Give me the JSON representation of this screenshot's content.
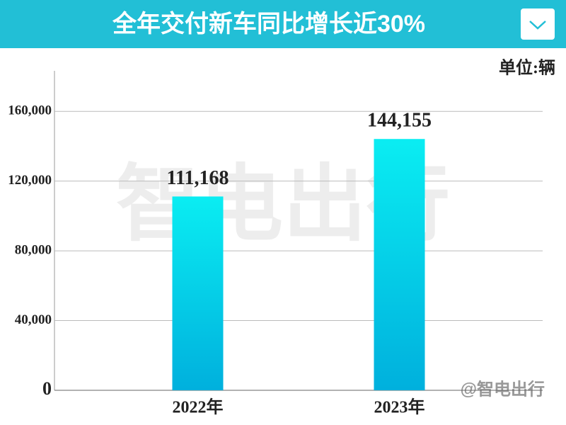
{
  "chart_data": {
    "type": "bar",
    "title": "全年交付新车同比增长近30%",
    "unit_label": "单位:辆",
    "watermark": "智电出行",
    "credit": "@智电出行",
    "categories": [
      "2022年",
      "2023年"
    ],
    "values": [
      111168,
      144155
    ],
    "value_labels": [
      "111,168",
      "144,155"
    ],
    "gradient": [
      "#0aedf2",
      "#00b0dd"
    ],
    "header_color": "#22bfd6",
    "ylim": [
      0,
      180000
    ],
    "yticks": [
      0,
      {
        "value": 40000,
        "label": "40,000"
      },
      {
        "value": 80000,
        "label": "80,000"
      },
      {
        "value": 120000,
        "label": "120,000"
      },
      {
        "value": 160000,
        "label": "160,000"
      }
    ],
    "grid": true
  }
}
